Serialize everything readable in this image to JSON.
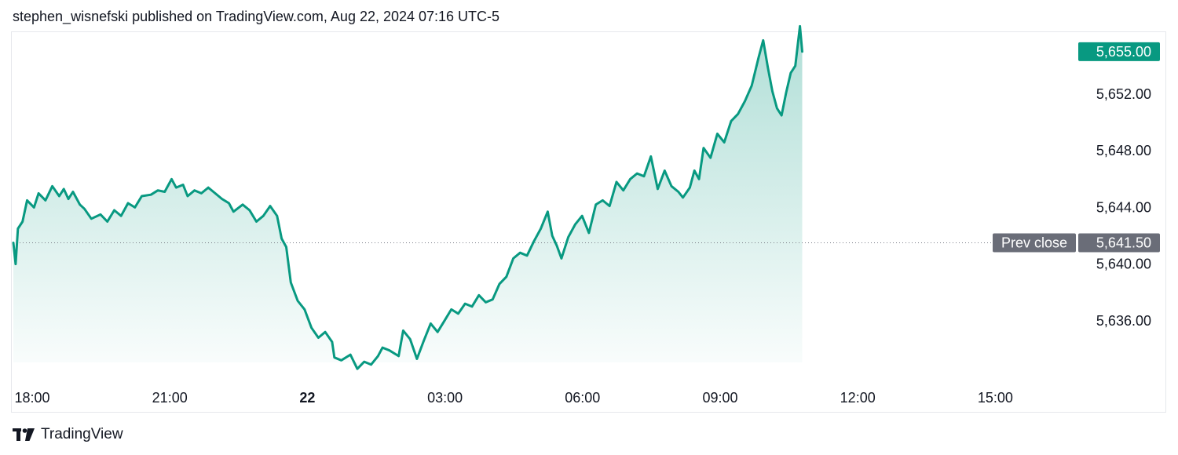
{
  "header": {
    "published_text": "stephen_wisnefski published on TradingView.com, Aug 22, 2024 07:16 UTC-5"
  },
  "footer": {
    "brand": "TradingView",
    "logo_icon": "tradingview-logo-icon"
  },
  "colors": {
    "line": "#089981",
    "fill_top": "#089981",
    "last_price_badge": "#089981",
    "prev_close_badge": "#6a6d78",
    "grid_border": "#e6e8ec",
    "text": "#131722"
  },
  "chart_data": {
    "type": "area",
    "title": "",
    "xlabel": "",
    "ylabel": "",
    "x_ticks": [
      {
        "label": "18:00",
        "hours": 0,
        "bold": false
      },
      {
        "label": "21:00",
        "hours": 3,
        "bold": false
      },
      {
        "label": "22",
        "hours": 6,
        "bold": true
      },
      {
        "label": "03:00",
        "hours": 9,
        "bold": false
      },
      {
        "label": "06:00",
        "hours": 12,
        "bold": false
      },
      {
        "label": "09:00",
        "hours": 15,
        "bold": false
      },
      {
        "label": "12:00",
        "hours": 18,
        "bold": false
      },
      {
        "label": "15:00",
        "hours": 21,
        "bold": false
      }
    ],
    "y_ticks": [
      "5,652.00",
      "5,648.00",
      "5,644.00",
      "5,640.00",
      "5,636.00"
    ],
    "y_tick_values": [
      5652,
      5648,
      5644,
      5640,
      5636
    ],
    "xlim_hours": [
      0,
      23.1
    ],
    "ylim": [
      5632.3,
      5658.0
    ],
    "last_price": {
      "label": "5,655.00",
      "value": 5655.0
    },
    "prev_close": {
      "label": "Prev close",
      "value_label": "5,641.50",
      "value": 5641.5
    },
    "series": [
      {
        "points": [
          [
            0.0,
            5641.5
          ],
          [
            0.05,
            5640.0
          ],
          [
            0.1,
            5642.5
          ],
          [
            0.2,
            5643.0
          ],
          [
            0.3,
            5644.5
          ],
          [
            0.45,
            5644.0
          ],
          [
            0.55,
            5645.0
          ],
          [
            0.7,
            5644.5
          ],
          [
            0.85,
            5645.5
          ],
          [
            1.0,
            5644.8
          ],
          [
            1.1,
            5645.3
          ],
          [
            1.2,
            5644.6
          ],
          [
            1.3,
            5645.1
          ],
          [
            1.45,
            5644.2
          ],
          [
            1.55,
            5643.9
          ],
          [
            1.7,
            5643.2
          ],
          [
            1.9,
            5643.5
          ],
          [
            2.05,
            5643.0
          ],
          [
            2.2,
            5643.8
          ],
          [
            2.35,
            5643.4
          ],
          [
            2.5,
            5644.3
          ],
          [
            2.65,
            5644.0
          ],
          [
            2.8,
            5644.8
          ],
          [
            3.0,
            5644.9
          ],
          [
            3.15,
            5645.2
          ],
          [
            3.3,
            5645.1
          ],
          [
            3.45,
            5646.0
          ],
          [
            3.55,
            5645.4
          ],
          [
            3.7,
            5645.6
          ],
          [
            3.8,
            5644.8
          ],
          [
            3.95,
            5645.2
          ],
          [
            4.1,
            5645.0
          ],
          [
            4.25,
            5645.4
          ],
          [
            4.4,
            5645.0
          ],
          [
            4.55,
            5644.6
          ],
          [
            4.7,
            5644.3
          ],
          [
            4.8,
            5643.7
          ],
          [
            5.0,
            5644.2
          ],
          [
            5.15,
            5643.8
          ],
          [
            5.3,
            5643.0
          ],
          [
            5.45,
            5643.4
          ],
          [
            5.6,
            5644.1
          ],
          [
            5.75,
            5643.4
          ],
          [
            5.85,
            5641.8
          ],
          [
            5.95,
            5641.2
          ],
          [
            6.05,
            5638.7
          ],
          [
            6.2,
            5637.4
          ],
          [
            6.35,
            5636.8
          ],
          [
            6.5,
            5635.5
          ],
          [
            6.65,
            5634.8
          ],
          [
            6.8,
            5635.2
          ],
          [
            6.95,
            5634.5
          ],
          [
            7.0,
            5633.4
          ],
          [
            7.15,
            5633.2
          ],
          [
            7.35,
            5633.6
          ],
          [
            7.5,
            5632.6
          ],
          [
            7.65,
            5633.1
          ],
          [
            7.8,
            5632.9
          ],
          [
            7.95,
            5633.5
          ],
          [
            8.05,
            5634.1
          ],
          [
            8.2,
            5633.9
          ],
          [
            8.4,
            5633.5
          ],
          [
            8.5,
            5635.3
          ],
          [
            8.65,
            5634.7
          ],
          [
            8.8,
            5633.3
          ],
          [
            8.95,
            5634.6
          ],
          [
            9.1,
            5635.8
          ],
          [
            9.25,
            5635.2
          ],
          [
            9.4,
            5636.0
          ],
          [
            9.55,
            5636.8
          ],
          [
            9.7,
            5636.5
          ],
          [
            9.85,
            5637.2
          ],
          [
            10.0,
            5637.0
          ],
          [
            10.15,
            5637.8
          ],
          [
            10.3,
            5637.3
          ],
          [
            10.45,
            5637.5
          ],
          [
            10.6,
            5638.6
          ],
          [
            10.75,
            5639.1
          ],
          [
            10.9,
            5640.4
          ],
          [
            11.05,
            5640.8
          ],
          [
            11.2,
            5640.6
          ],
          [
            11.35,
            5641.6
          ],
          [
            11.5,
            5642.5
          ],
          [
            11.65,
            5643.7
          ],
          [
            11.75,
            5642.0
          ],
          [
            11.85,
            5641.3
          ],
          [
            11.95,
            5640.4
          ],
          [
            12.1,
            5641.9
          ],
          [
            12.25,
            5642.8
          ],
          [
            12.4,
            5643.4
          ],
          [
            12.55,
            5642.2
          ],
          [
            12.7,
            5644.2
          ],
          [
            12.85,
            5644.5
          ],
          [
            13.0,
            5644.1
          ],
          [
            13.15,
            5645.8
          ],
          [
            13.3,
            5645.2
          ],
          [
            13.45,
            5646.0
          ],
          [
            13.6,
            5646.4
          ],
          [
            13.75,
            5646.2
          ],
          [
            13.9,
            5647.6
          ],
          [
            14.05,
            5645.3
          ],
          [
            14.2,
            5646.6
          ],
          [
            14.35,
            5645.5
          ],
          [
            14.5,
            5645.1
          ],
          [
            14.6,
            5644.7
          ],
          [
            14.75,
            5645.4
          ],
          [
            14.85,
            5646.6
          ],
          [
            14.95,
            5646.0
          ],
          [
            15.05,
            5648.2
          ],
          [
            15.2,
            5647.5
          ],
          [
            15.35,
            5649.2
          ],
          [
            15.5,
            5648.6
          ],
          [
            15.65,
            5650.1
          ],
          [
            15.8,
            5650.6
          ],
          [
            15.95,
            5651.5
          ],
          [
            16.1,
            5652.6
          ],
          [
            16.25,
            5654.6
          ],
          [
            16.35,
            5655.8
          ],
          [
            16.45,
            5653.9
          ],
          [
            16.55,
            5652.2
          ],
          [
            16.65,
            5651.0
          ],
          [
            16.75,
            5650.5
          ],
          [
            16.85,
            5652.1
          ],
          [
            16.95,
            5653.5
          ],
          [
            17.05,
            5654.0
          ],
          [
            17.15,
            5656.8
          ],
          [
            17.2,
            5655.0
          ]
        ]
      }
    ]
  }
}
